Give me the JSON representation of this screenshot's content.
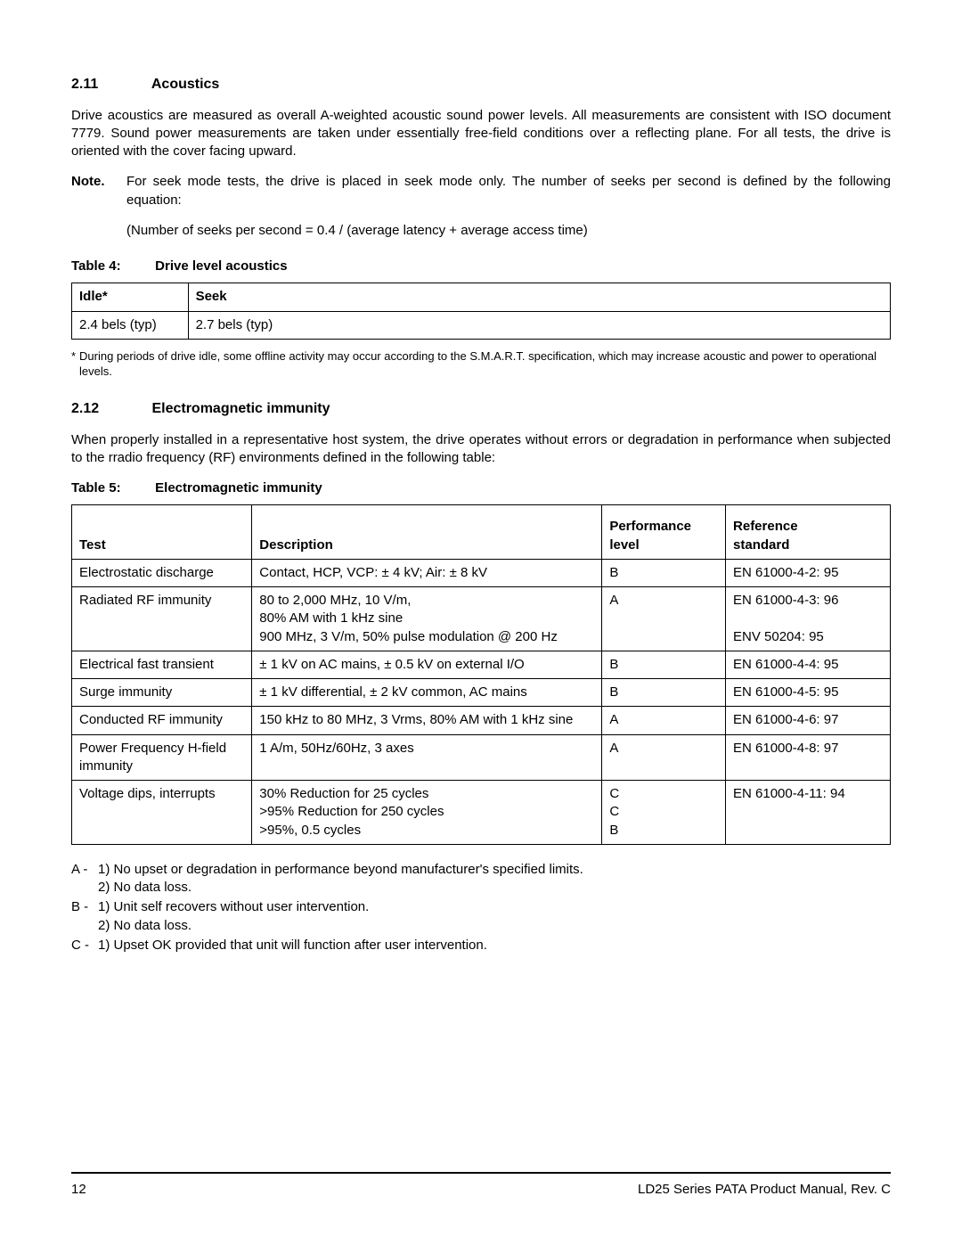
{
  "sections": {
    "s211": {
      "num": "2.11",
      "title": "Acoustics"
    },
    "s212": {
      "num": "2.12",
      "title": "Electromagnetic immunity"
    }
  },
  "para_acoustics": "Drive acoustics are measured as overall A-weighted acoustic sound power levels. All measurements are consistent with ISO document 7779. Sound power measurements are taken under essentially free-field conditions over a reflecting plane. For all tests, the drive is oriented with the cover facing upward.",
  "note": {
    "label": "Note.",
    "body": "For seek mode tests, the drive is placed in seek mode only. The number of seeks per second is defined by the following equation:",
    "equation": "(Number of seeks per second = 0.4 / (average latency + average access time)"
  },
  "table4": {
    "caption_num": "Table 4:",
    "caption_title": "Drive level acoustics",
    "headers": [
      "Idle*",
      "Seek"
    ],
    "row": [
      "2.4 bels (typ)",
      "2.7 bels (typ)"
    ],
    "footnote_mark": "*",
    "footnote": "During periods of drive idle, some offline activity may occur according to the S.M.A.R.T. specification, which may increase acoustic and power to operational levels."
  },
  "para_emi": "When properly installed in a representative host system, the drive operates without errors or degradation in performance when subjected to the rradio frequency (RF) environments defined in the following table:",
  "table5": {
    "caption_num": "Table 5:",
    "caption_title": "Electromagnetic immunity",
    "headers": [
      "Test",
      "Description",
      "Performance\nlevel",
      "Reference\nstandard"
    ],
    "rows": [
      [
        "Electrostatic discharge",
        "Contact, HCP, VCP: ± 4 kV; Air: ± 8 kV",
        "B",
        "EN 61000-4-2: 95"
      ],
      [
        "Radiated RF immunity",
        "80 to 2,000 MHz, 10 V/m,\n80% AM with 1 kHz sine\n900 MHz, 3 V/m, 50% pulse modulation @ 200 Hz",
        "A",
        "EN 61000-4-3: 96\n\nENV 50204: 95"
      ],
      [
        "Electrical fast transient",
        "± 1 kV on AC mains, ± 0.5 kV on external I/O",
        "B",
        "EN 61000-4-4: 95"
      ],
      [
        "Surge immunity",
        "± 1 kV differential, ± 2 kV common, AC mains",
        "B",
        "EN 61000-4-5: 95"
      ],
      [
        "Conducted RF immunity",
        "150 kHz to 80 MHz, 3 Vrms, 80% AM with 1 kHz sine",
        "A",
        "EN 61000-4-6: 97"
      ],
      [
        "Power Frequency H-field immunity",
        "1 A/m, 50Hz/60Hz, 3 axes",
        "A",
        "EN 61000-4-8: 97"
      ],
      [
        "Voltage dips, interrupts",
        "30% Reduction for 25 cycles\n>95% Reduction for 250 cycles\n>95%, 0.5 cycles",
        "C\nC\nB",
        "EN 61000-4-11: 94"
      ]
    ]
  },
  "legend": [
    {
      "label": "A - ",
      "body": "1) No upset or degradation in performance beyond manufacturer's specified limits.\n2) No data loss."
    },
    {
      "label": "B - ",
      "body": "1) Unit self recovers without user intervention.\n2) No data loss."
    },
    {
      "label": "C - ",
      "body": "1) Upset OK provided that unit will function after user intervention."
    }
  ],
  "footer": {
    "page": "12",
    "doc": "LD25 Series PATA Product Manual, Rev. C"
  }
}
